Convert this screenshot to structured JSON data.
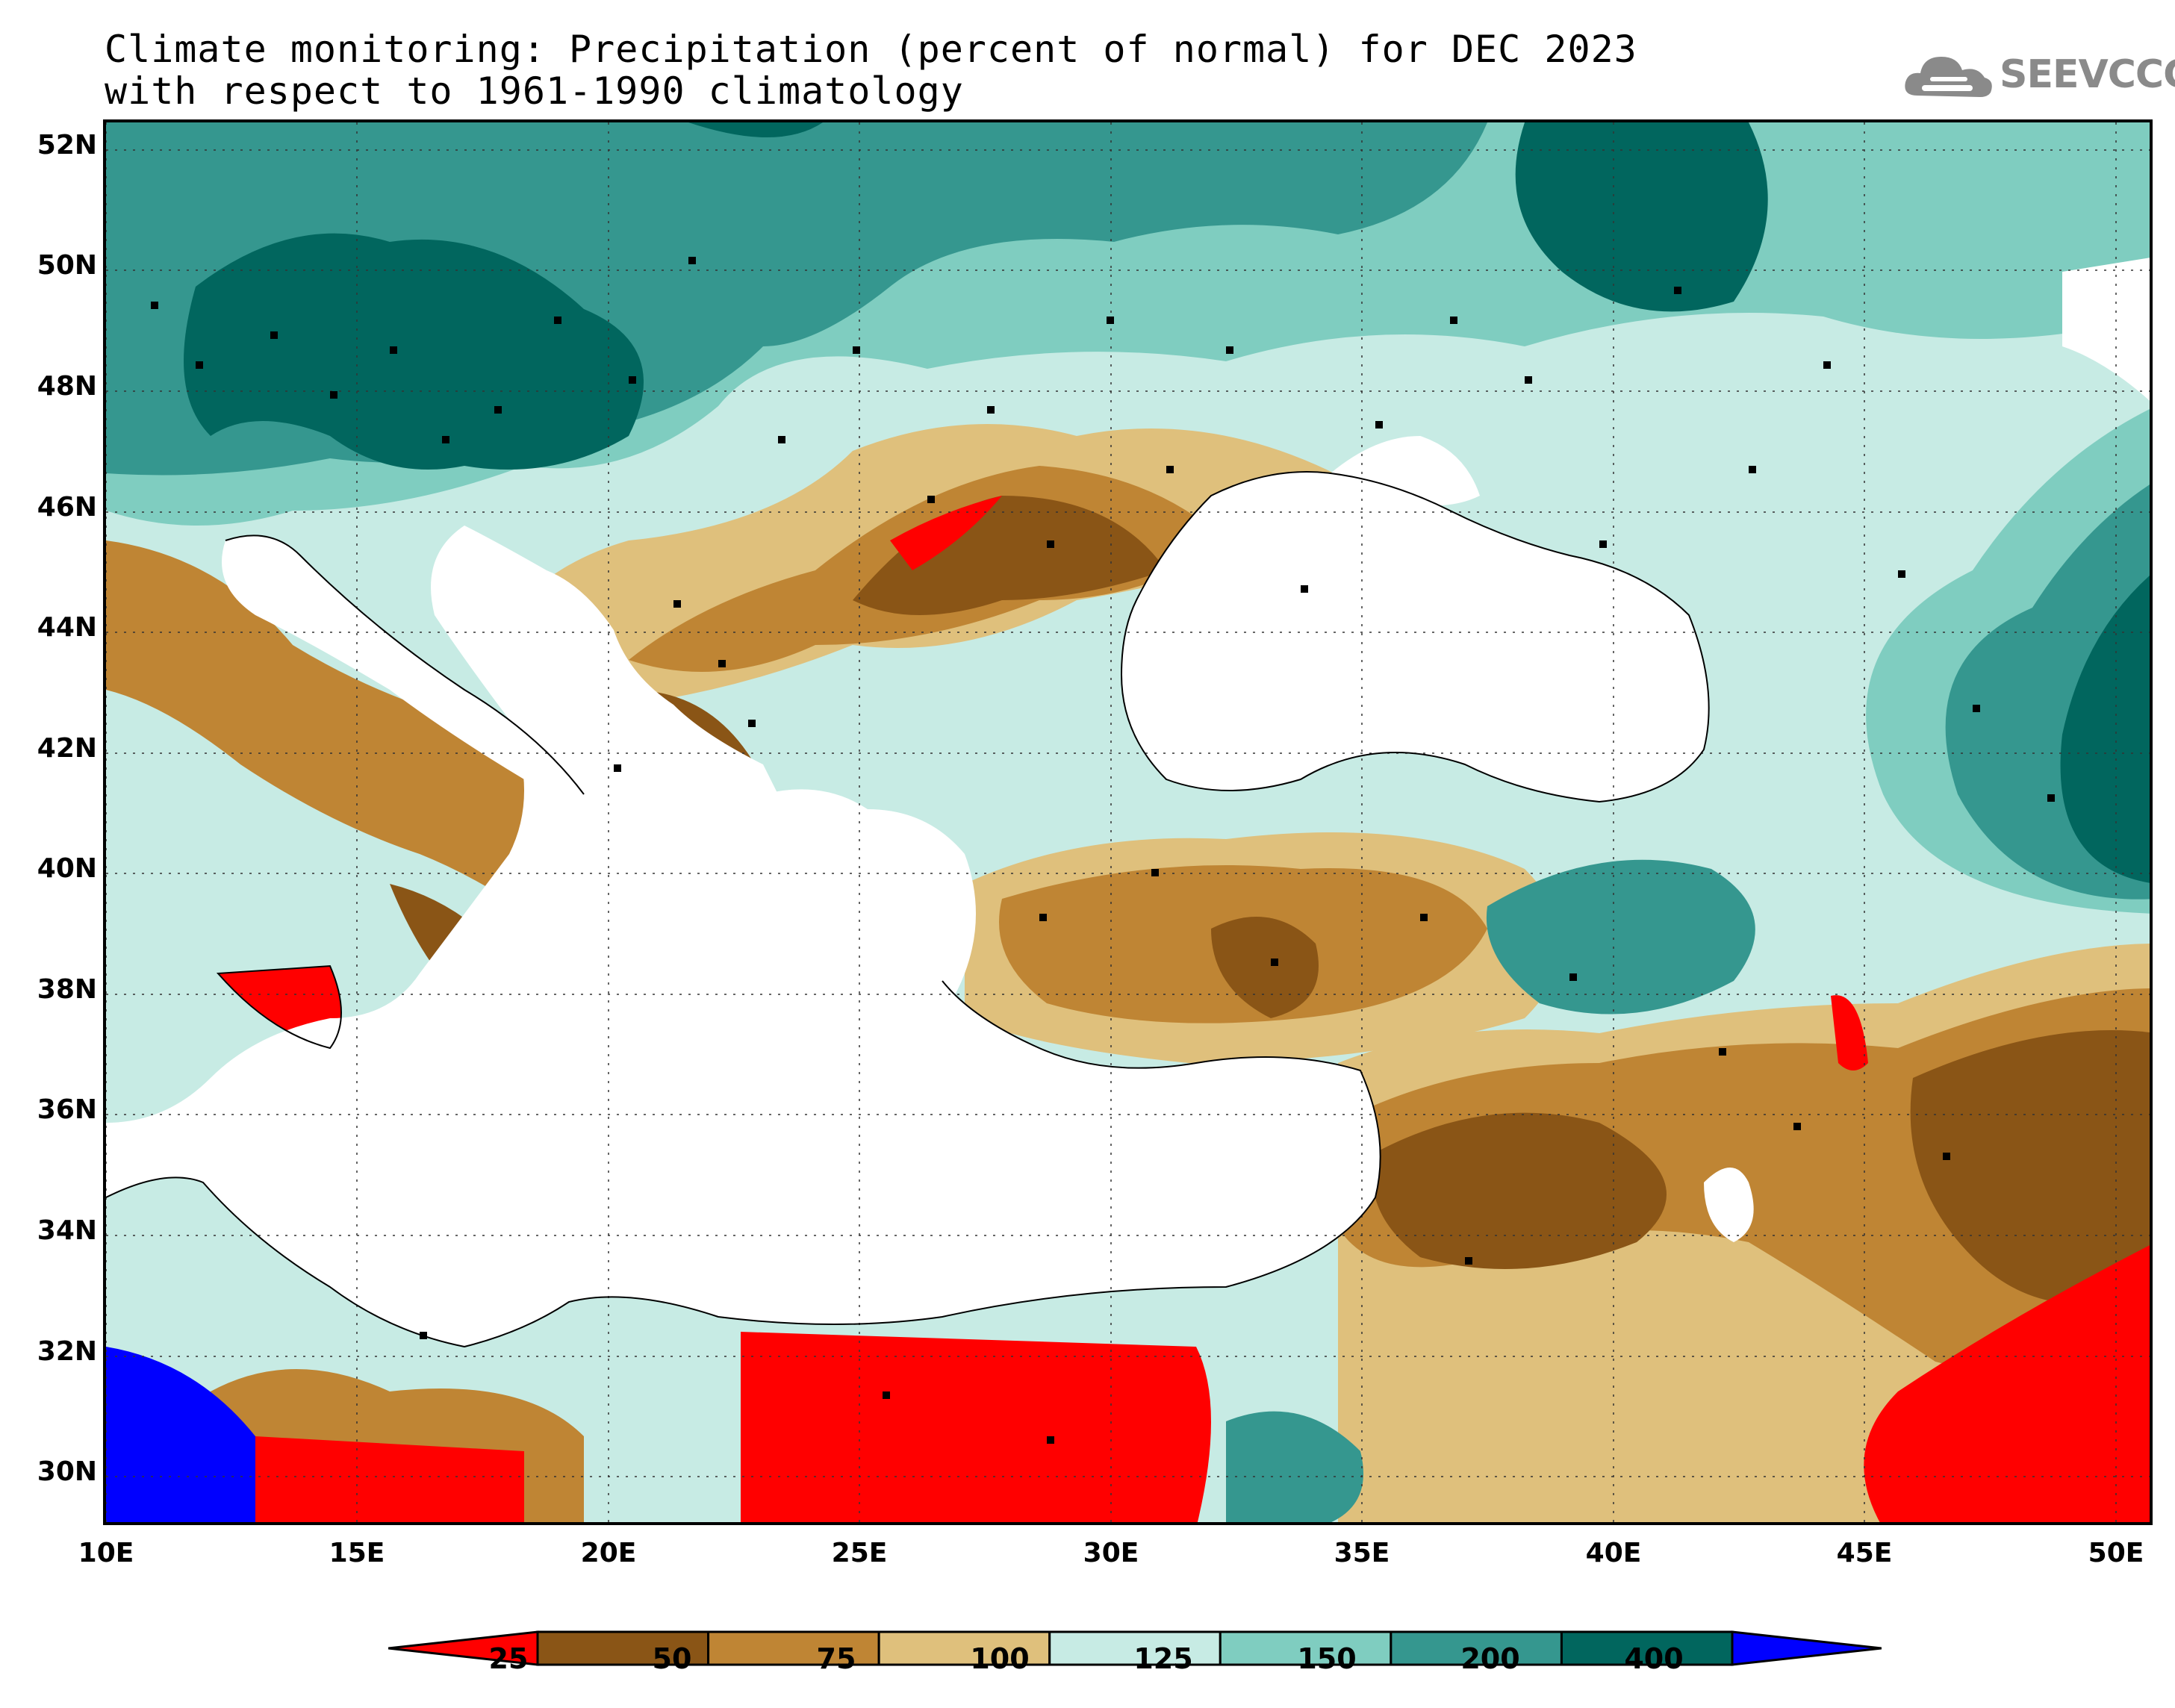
{
  "title": {
    "line1": "Climate monitoring: Precipitation (percent of normal) for DEC 2023",
    "line2": "with respect to 1961-1990 climatology"
  },
  "logo": {
    "text": "SEEVCCC",
    "icon": "cloud-icon"
  },
  "axes": {
    "lat_labels": [
      "52N",
      "50N",
      "48N",
      "46N",
      "44N",
      "42N",
      "40N",
      "38N",
      "36N",
      "34N",
      "32N",
      "30N"
    ],
    "lon_labels": [
      "10E",
      "15E",
      "20E",
      "25E",
      "30E",
      "35E",
      "40E",
      "45E",
      "50E"
    ]
  },
  "colorbar": {
    "labels": [
      "25",
      "50",
      "75",
      "100",
      "125",
      "150",
      "200",
      "400"
    ],
    "colors": [
      "#ff0000",
      "#8a5516",
      "#bf8534",
      "#dfc07c",
      "#c7ebe4",
      "#7fcdc0",
      "#35978f",
      "#01665e",
      "#0000ff"
    ]
  }
}
